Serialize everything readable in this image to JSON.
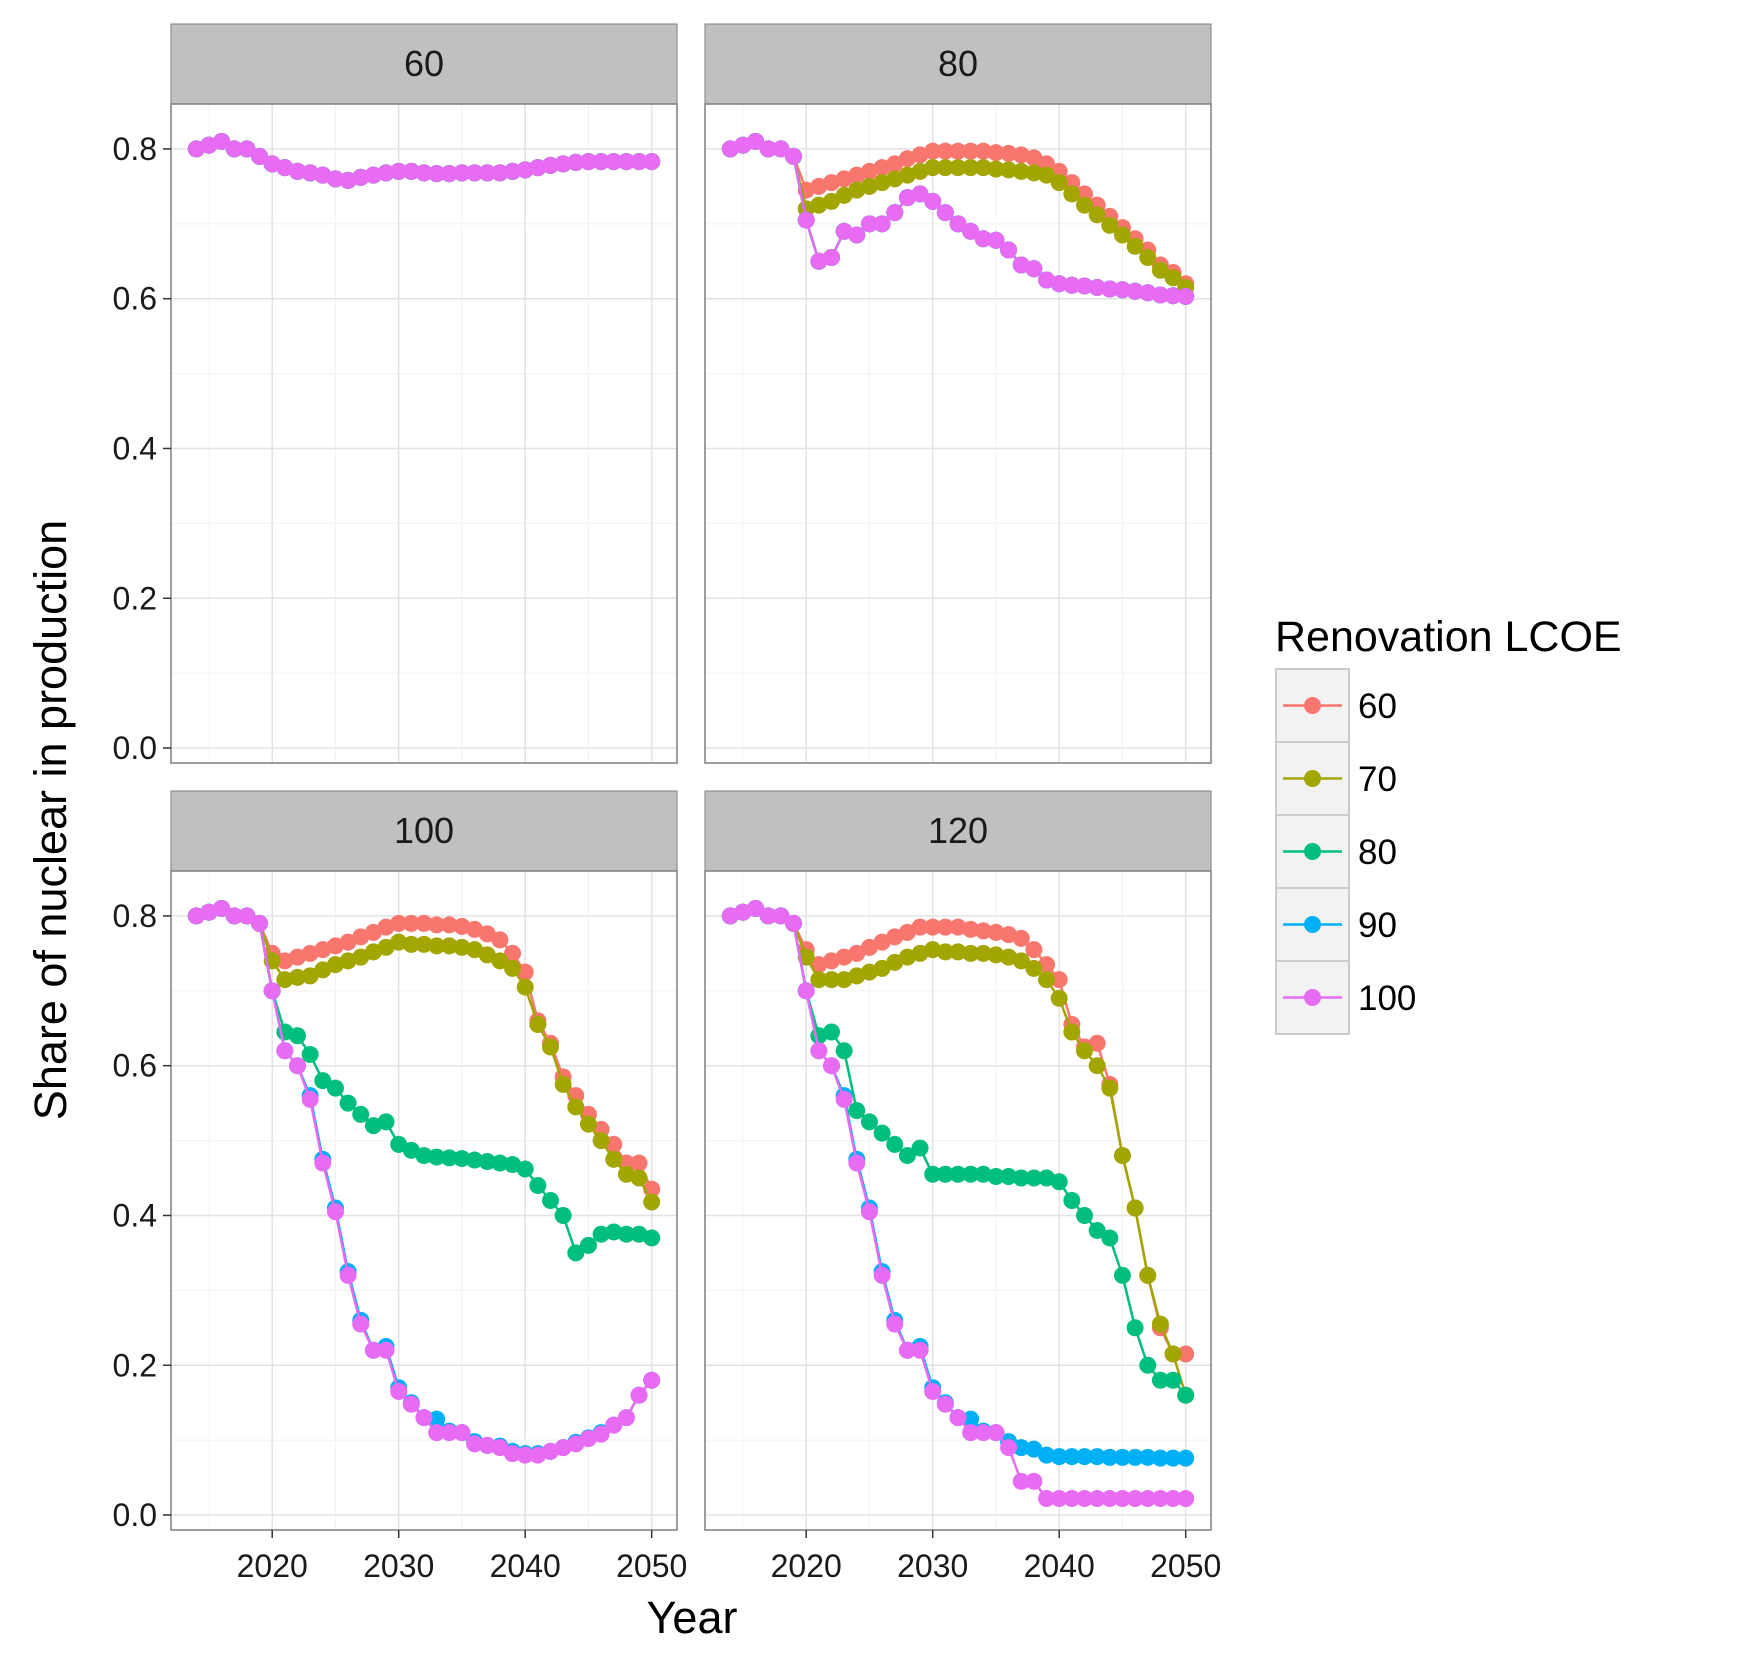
{
  "chart_data": {
    "type": "line",
    "xlabel": "Year",
    "ylabel": "Share of nuclear in production",
    "xlim": [
      2012,
      2052
    ],
    "ylim": [
      -0.02,
      0.86
    ],
    "x_ticks": [
      2020,
      2030,
      2040,
      2050
    ],
    "y_ticks": [
      "0.0",
      "0.2",
      "0.4",
      "0.6",
      "0.8"
    ],
    "grid": true,
    "legend": {
      "title": "Renovation LCOE",
      "position": "right",
      "entries": [
        "60",
        "70",
        "80",
        "90",
        "100"
      ]
    },
    "colors": {
      "60": "#F8766D",
      "70": "#A3A500",
      "80": "#00BF7D",
      "90": "#00B0F6",
      "100": "#E76BF3"
    },
    "x": [
      2014,
      2015,
      2016,
      2017,
      2018,
      2019,
      2020,
      2021,
      2022,
      2023,
      2024,
      2025,
      2026,
      2027,
      2028,
      2029,
      2030,
      2031,
      2032,
      2033,
      2034,
      2035,
      2036,
      2037,
      2038,
      2039,
      2040,
      2041,
      2042,
      2043,
      2044,
      2045,
      2046,
      2047,
      2048,
      2049,
      2050
    ],
    "panels": [
      {
        "label": "60",
        "series": [
          {
            "name": "60",
            "values": [
              0.8,
              0.805,
              0.81,
              0.8,
              0.8,
              0.79,
              0.78,
              0.775,
              0.77,
              0.768,
              0.765,
              0.76,
              0.758,
              0.762,
              0.765,
              0.768,
              0.77,
              0.77,
              0.768,
              0.767,
              0.767,
              0.768,
              0.768,
              0.768,
              0.768,
              0.77,
              0.772,
              0.775,
              0.778,
              0.78,
              0.782,
              0.783,
              0.783,
              0.783,
              0.783,
              0.783,
              0.783
            ]
          },
          {
            "name": "70",
            "values": [
              0.8,
              0.805,
              0.81,
              0.8,
              0.8,
              0.79,
              0.78,
              0.775,
              0.77,
              0.768,
              0.765,
              0.76,
              0.758,
              0.762,
              0.765,
              0.768,
              0.77,
              0.77,
              0.768,
              0.767,
              0.767,
              0.768,
              0.768,
              0.768,
              0.768,
              0.77,
              0.772,
              0.775,
              0.778,
              0.78,
              0.782,
              0.783,
              0.783,
              0.783,
              0.783,
              0.783,
              0.783
            ]
          },
          {
            "name": "80",
            "values": [
              0.8,
              0.805,
              0.81,
              0.8,
              0.8,
              0.79,
              0.78,
              0.775,
              0.77,
              0.768,
              0.765,
              0.76,
              0.758,
              0.762,
              0.765,
              0.768,
              0.77,
              0.77,
              0.768,
              0.767,
              0.767,
              0.768,
              0.768,
              0.768,
              0.768,
              0.77,
              0.772,
              0.775,
              0.778,
              0.78,
              0.782,
              0.783,
              0.783,
              0.783,
              0.783,
              0.783,
              0.783
            ]
          },
          {
            "name": "90",
            "values": [
              0.8,
              0.805,
              0.81,
              0.8,
              0.8,
              0.79,
              0.78,
              0.775,
              0.77,
              0.768,
              0.765,
              0.76,
              0.758,
              0.762,
              0.765,
              0.768,
              0.77,
              0.77,
              0.768,
              0.767,
              0.767,
              0.768,
              0.768,
              0.768,
              0.768,
              0.77,
              0.772,
              0.775,
              0.778,
              0.78,
              0.782,
              0.783,
              0.783,
              0.783,
              0.783,
              0.783,
              0.783
            ]
          },
          {
            "name": "100",
            "values": [
              0.8,
              0.805,
              0.81,
              0.8,
              0.8,
              0.79,
              0.78,
              0.775,
              0.77,
              0.768,
              0.765,
              0.76,
              0.758,
              0.762,
              0.765,
              0.768,
              0.77,
              0.77,
              0.768,
              0.767,
              0.767,
              0.768,
              0.768,
              0.768,
              0.768,
              0.77,
              0.772,
              0.775,
              0.778,
              0.78,
              0.782,
              0.783,
              0.783,
              0.783,
              0.783,
              0.783,
              0.783
            ]
          }
        ]
      },
      {
        "label": "80",
        "series": [
          {
            "name": "60",
            "values": [
              0.8,
              0.805,
              0.81,
              0.8,
              0.8,
              0.79,
              0.745,
              0.75,
              0.755,
              0.76,
              0.765,
              0.77,
              0.775,
              0.78,
              0.787,
              0.792,
              0.797,
              0.797,
              0.797,
              0.797,
              0.797,
              0.795,
              0.794,
              0.792,
              0.788,
              0.78,
              0.77,
              0.755,
              0.74,
              0.725,
              0.71,
              0.695,
              0.68,
              0.665,
              0.645,
              0.635,
              0.62
            ]
          },
          {
            "name": "70",
            "values": [
              0.8,
              0.805,
              0.81,
              0.8,
              0.8,
              0.79,
              0.72,
              0.725,
              0.73,
              0.738,
              0.745,
              0.75,
              0.755,
              0.76,
              0.765,
              0.77,
              0.775,
              0.775,
              0.775,
              0.775,
              0.775,
              0.773,
              0.772,
              0.77,
              0.768,
              0.765,
              0.755,
              0.74,
              0.725,
              0.712,
              0.698,
              0.685,
              0.67,
              0.655,
              0.638,
              0.628,
              0.615
            ]
          },
          {
            "name": "80",
            "values": [
              0.8,
              0.805,
              0.81,
              0.8,
              0.8,
              0.79,
              0.705,
              0.65,
              0.655,
              0.69,
              0.685,
              0.7,
              0.7,
              0.715,
              0.735,
              0.74,
              0.73,
              0.715,
              0.7,
              0.69,
              0.68,
              0.678,
              0.665,
              0.645,
              0.64,
              0.625,
              0.62,
              0.618,
              0.617,
              0.615,
              0.613,
              0.612,
              0.61,
              0.608,
              0.605,
              0.604,
              0.603
            ]
          },
          {
            "name": "90",
            "values": [
              0.8,
              0.805,
              0.81,
              0.8,
              0.8,
              0.79,
              0.705,
              0.65,
              0.655,
              0.69,
              0.685,
              0.7,
              0.7,
              0.715,
              0.735,
              0.74,
              0.73,
              0.715,
              0.7,
              0.69,
              0.68,
              0.678,
              0.665,
              0.645,
              0.64,
              0.625,
              0.62,
              0.618,
              0.617,
              0.615,
              0.613,
              0.612,
              0.61,
              0.608,
              0.605,
              0.604,
              0.603
            ]
          },
          {
            "name": "100",
            "values": [
              0.8,
              0.805,
              0.81,
              0.8,
              0.8,
              0.79,
              0.705,
              0.65,
              0.655,
              0.69,
              0.685,
              0.7,
              0.7,
              0.715,
              0.735,
              0.74,
              0.73,
              0.715,
              0.7,
              0.69,
              0.68,
              0.678,
              0.665,
              0.645,
              0.64,
              0.625,
              0.62,
              0.618,
              0.617,
              0.615,
              0.613,
              0.612,
              0.61,
              0.608,
              0.605,
              0.604,
              0.603
            ]
          }
        ]
      },
      {
        "label": "100",
        "series": [
          {
            "name": "60",
            "values": [
              0.8,
              0.805,
              0.81,
              0.8,
              0.8,
              0.79,
              0.75,
              0.74,
              0.745,
              0.75,
              0.755,
              0.76,
              0.765,
              0.772,
              0.778,
              0.785,
              0.79,
              0.79,
              0.79,
              0.788,
              0.788,
              0.786,
              0.782,
              0.776,
              0.768,
              0.75,
              0.725,
              0.66,
              0.63,
              0.585,
              0.56,
              0.535,
              0.515,
              0.495,
              0.47,
              0.47,
              0.435
            ]
          },
          {
            "name": "70",
            "values": [
              0.8,
              0.805,
              0.81,
              0.8,
              0.8,
              0.79,
              0.74,
              0.715,
              0.718,
              0.72,
              0.728,
              0.735,
              0.74,
              0.745,
              0.752,
              0.758,
              0.765,
              0.762,
              0.762,
              0.76,
              0.76,
              0.758,
              0.755,
              0.748,
              0.74,
              0.73,
              0.705,
              0.655,
              0.625,
              0.575,
              0.545,
              0.522,
              0.5,
              0.475,
              0.455,
              0.45,
              0.418
            ]
          },
          {
            "name": "80",
            "values": [
              0.8,
              0.805,
              0.81,
              0.8,
              0.8,
              0.79,
              0.7,
              0.645,
              0.64,
              0.615,
              0.58,
              0.57,
              0.55,
              0.535,
              0.52,
              0.525,
              0.495,
              0.487,
              0.48,
              0.478,
              0.477,
              0.476,
              0.474,
              0.472,
              0.47,
              0.468,
              0.462,
              0.44,
              0.42,
              0.4,
              0.35,
              0.36,
              0.375,
              0.378,
              0.375,
              0.375,
              0.37
            ]
          },
          {
            "name": "90",
            "values": [
              0.8,
              0.805,
              0.81,
              0.8,
              0.8,
              0.79,
              0.7,
              0.62,
              0.6,
              0.56,
              0.475,
              0.41,
              0.325,
              0.26,
              0.22,
              0.225,
              0.17,
              0.15,
              0.13,
              0.128,
              0.112,
              0.11,
              0.098,
              0.093,
              0.092,
              0.085,
              0.082,
              0.082,
              0.085,
              0.09,
              0.097,
              0.103,
              0.11,
              0.12,
              0.13,
              0.16,
              0.18
            ]
          },
          {
            "name": "100",
            "values": [
              0.8,
              0.805,
              0.81,
              0.8,
              0.8,
              0.79,
              0.7,
              0.62,
              0.6,
              0.555,
              0.47,
              0.405,
              0.32,
              0.255,
              0.22,
              0.22,
              0.165,
              0.148,
              0.13,
              0.11,
              0.11,
              0.11,
              0.095,
              0.093,
              0.09,
              0.082,
              0.08,
              0.08,
              0.085,
              0.09,
              0.095,
              0.102,
              0.108,
              0.12,
              0.13,
              0.16,
              0.18
            ]
          }
        ]
      },
      {
        "label": "120",
        "series": [
          {
            "name": "60",
            "values": [
              0.8,
              0.805,
              0.81,
              0.8,
              0.8,
              0.79,
              0.755,
              0.735,
              0.74,
              0.745,
              0.75,
              0.758,
              0.765,
              0.772,
              0.778,
              0.785,
              0.785,
              0.785,
              0.785,
              0.782,
              0.78,
              0.778,
              0.775,
              0.77,
              0.755,
              0.735,
              0.715,
              0.655,
              0.625,
              0.63,
              0.575,
              0.48,
              0.41,
              0.32,
              0.25,
              0.215,
              0.215
            ]
          },
          {
            "name": "70",
            "values": [
              0.8,
              0.805,
              0.81,
              0.8,
              0.8,
              0.79,
              0.745,
              0.715,
              0.715,
              0.715,
              0.72,
              0.725,
              0.73,
              0.738,
              0.745,
              0.75,
              0.755,
              0.752,
              0.752,
              0.75,
              0.75,
              0.748,
              0.745,
              0.74,
              0.73,
              0.715,
              0.69,
              0.645,
              0.62,
              0.6,
              0.57,
              0.48,
              0.41,
              0.32,
              0.255,
              0.215,
              0.16
            ]
          },
          {
            "name": "80",
            "values": [
              0.8,
              0.805,
              0.81,
              0.8,
              0.8,
              0.79,
              0.7,
              0.64,
              0.645,
              0.62,
              0.54,
              0.525,
              0.51,
              0.495,
              0.48,
              0.49,
              0.455,
              0.455,
              0.455,
              0.455,
              0.455,
              0.452,
              0.452,
              0.45,
              0.45,
              0.45,
              0.445,
              0.42,
              0.4,
              0.38,
              0.37,
              0.32,
              0.25,
              0.2,
              0.18,
              0.18,
              0.16
            ]
          },
          {
            "name": "90",
            "values": [
              0.8,
              0.805,
              0.81,
              0.8,
              0.8,
              0.79,
              0.7,
              0.62,
              0.6,
              0.56,
              0.475,
              0.41,
              0.325,
              0.26,
              0.22,
              0.225,
              0.17,
              0.15,
              0.13,
              0.128,
              0.112,
              0.11,
              0.098,
              0.09,
              0.088,
              0.08,
              0.078,
              0.078,
              0.078,
              0.078,
              0.077,
              0.077,
              0.077,
              0.077,
              0.076,
              0.076,
              0.076
            ]
          },
          {
            "name": "100",
            "values": [
              0.8,
              0.805,
              0.81,
              0.8,
              0.8,
              0.79,
              0.7,
              0.62,
              0.6,
              0.555,
              0.47,
              0.405,
              0.32,
              0.255,
              0.22,
              0.22,
              0.165,
              0.148,
              0.13,
              0.11,
              0.11,
              0.11,
              0.09,
              0.045,
              0.045,
              0.022,
              0.022,
              0.022,
              0.022,
              0.022,
              0.022,
              0.022,
              0.022,
              0.022,
              0.022,
              0.022,
              0.022
            ]
          }
        ]
      }
    ]
  }
}
